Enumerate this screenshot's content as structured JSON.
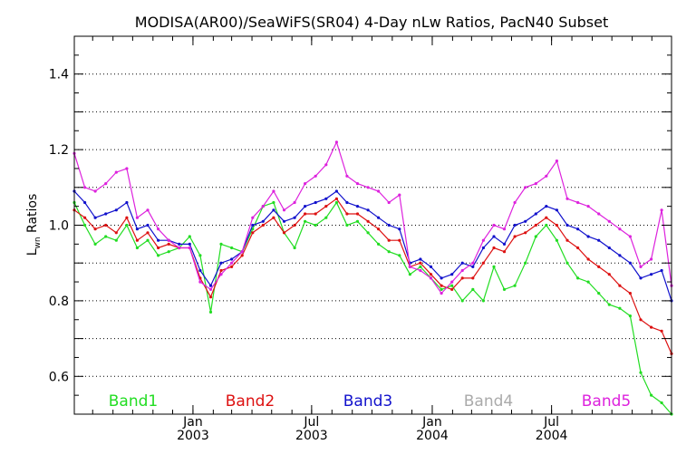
{
  "chart_data": {
    "type": "line",
    "title": "MODISA(AR00)/SeaWiFS(SR04) 4-Day nLw Ratios, PacN40 Subset",
    "ylabel": "L",
    "ylabel_sub": "wn",
    "ylabel_rest": " Ratios",
    "ylim": [
      0.5,
      1.5
    ],
    "xlim": [
      "2002-07-04",
      "2004-12-31"
    ],
    "y_ticks": [
      "0.6",
      "0.8",
      "1.0",
      "1.2",
      "1.4"
    ],
    "y_tick_values": [
      0.6,
      0.8,
      1.0,
      1.2,
      1.4
    ],
    "x_ticks": [
      {
        "date": "2003-01-01",
        "month": "Jan",
        "year": "2003"
      },
      {
        "date": "2003-07-01",
        "month": "Jul",
        "year": "2003"
      },
      {
        "date": "2004-01-01",
        "month": "Jan",
        "year": "2004"
      },
      {
        "date": "2004-07-01",
        "month": "Jul",
        "year": "2004"
      }
    ],
    "grid": "horizontal dotted",
    "legend_placement": "bottom",
    "colors": {
      "Band1": "#22dd22",
      "Band2": "#dd1111",
      "Band3": "#1111cc",
      "Band4": "#aaaaaa",
      "Band5": "#dd22dd"
    },
    "series": [
      {
        "name": "Band1",
        "color": "#22dd22",
        "points": [
          [
            "2002-07-04",
            1.06
          ],
          [
            "2002-07-20",
            1.0
          ],
          [
            "2002-08-05",
            0.95
          ],
          [
            "2002-08-21",
            0.97
          ],
          [
            "2002-09-06",
            0.96
          ],
          [
            "2002-09-22",
            1.0
          ],
          [
            "2002-10-08",
            0.94
          ],
          [
            "2002-10-24",
            0.96
          ],
          [
            "2002-11-09",
            0.92
          ],
          [
            "2002-11-25",
            0.93
          ],
          [
            "2002-12-11",
            0.94
          ],
          [
            "2002-12-27",
            0.97
          ],
          [
            "2003-01-12",
            0.92
          ],
          [
            "2003-01-28",
            0.77
          ],
          [
            "2003-02-13",
            0.95
          ],
          [
            "2003-03-01",
            0.94
          ],
          [
            "2003-03-17",
            0.93
          ],
          [
            "2003-04-02",
            0.99
          ],
          [
            "2003-04-18",
            1.05
          ],
          [
            "2003-05-04",
            1.06
          ],
          [
            "2003-05-20",
            0.98
          ],
          [
            "2003-06-05",
            0.94
          ],
          [
            "2003-06-21",
            1.01
          ],
          [
            "2003-07-07",
            1.0
          ],
          [
            "2003-07-23",
            1.02
          ],
          [
            "2003-08-08",
            1.06
          ],
          [
            "2003-08-24",
            1.0
          ],
          [
            "2003-09-09",
            1.01
          ],
          [
            "2003-09-25",
            0.98
          ],
          [
            "2003-10-11",
            0.95
          ],
          [
            "2003-10-27",
            0.93
          ],
          [
            "2003-11-12",
            0.92
          ],
          [
            "2003-11-28",
            0.87
          ],
          [
            "2003-12-14",
            0.89
          ],
          [
            "2003-12-30",
            0.86
          ],
          [
            "2004-01-15",
            0.83
          ],
          [
            "2004-01-31",
            0.84
          ],
          [
            "2004-02-16",
            0.8
          ],
          [
            "2004-03-03",
            0.83
          ],
          [
            "2004-03-19",
            0.8
          ],
          [
            "2004-04-04",
            0.89
          ],
          [
            "2004-04-20",
            0.83
          ],
          [
            "2004-05-06",
            0.84
          ],
          [
            "2004-05-22",
            0.9
          ],
          [
            "2004-06-07",
            0.97
          ],
          [
            "2004-06-23",
            1.0
          ],
          [
            "2004-07-09",
            0.96
          ],
          [
            "2004-07-25",
            0.9
          ],
          [
            "2004-08-10",
            0.86
          ],
          [
            "2004-08-26",
            0.85
          ],
          [
            "2004-09-11",
            0.82
          ],
          [
            "2004-09-27",
            0.79
          ],
          [
            "2004-10-13",
            0.78
          ],
          [
            "2004-10-29",
            0.76
          ],
          [
            "2004-11-14",
            0.61
          ],
          [
            "2004-11-30",
            0.55
          ],
          [
            "2004-12-16",
            0.53
          ],
          [
            "2004-12-31",
            0.5
          ]
        ]
      },
      {
        "name": "Band2",
        "color": "#dd1111",
        "points": [
          [
            "2002-07-04",
            1.04
          ],
          [
            "2002-07-20",
            1.02
          ],
          [
            "2002-08-05",
            0.99
          ],
          [
            "2002-08-21",
            1.0
          ],
          [
            "2002-09-06",
            0.98
          ],
          [
            "2002-09-22",
            1.02
          ],
          [
            "2002-10-08",
            0.96
          ],
          [
            "2002-10-24",
            0.98
          ],
          [
            "2002-11-09",
            0.94
          ],
          [
            "2002-11-25",
            0.95
          ],
          [
            "2002-12-11",
            0.94
          ],
          [
            "2002-12-27",
            0.94
          ],
          [
            "2003-01-12",
            0.86
          ],
          [
            "2003-01-28",
            0.81
          ],
          [
            "2003-02-13",
            0.88
          ],
          [
            "2003-03-01",
            0.89
          ],
          [
            "2003-03-17",
            0.92
          ],
          [
            "2003-04-02",
            0.98
          ],
          [
            "2003-04-18",
            1.0
          ],
          [
            "2003-05-04",
            1.02
          ],
          [
            "2003-05-20",
            0.98
          ],
          [
            "2003-06-05",
            1.0
          ],
          [
            "2003-06-21",
            1.03
          ],
          [
            "2003-07-07",
            1.03
          ],
          [
            "2003-07-23",
            1.05
          ],
          [
            "2003-08-08",
            1.07
          ],
          [
            "2003-08-24",
            1.03
          ],
          [
            "2003-09-09",
            1.03
          ],
          [
            "2003-09-25",
            1.01
          ],
          [
            "2003-10-11",
            0.99
          ],
          [
            "2003-10-27",
            0.96
          ],
          [
            "2003-11-12",
            0.96
          ],
          [
            "2003-11-28",
            0.89
          ],
          [
            "2003-12-14",
            0.9
          ],
          [
            "2003-12-30",
            0.87
          ],
          [
            "2004-01-15",
            0.84
          ],
          [
            "2004-01-31",
            0.83
          ],
          [
            "2004-02-16",
            0.86
          ],
          [
            "2004-03-03",
            0.86
          ],
          [
            "2004-03-19",
            0.9
          ],
          [
            "2004-04-04",
            0.94
          ],
          [
            "2004-04-20",
            0.93
          ],
          [
            "2004-05-06",
            0.97
          ],
          [
            "2004-05-22",
            0.98
          ],
          [
            "2004-06-07",
            1.0
          ],
          [
            "2004-06-23",
            1.02
          ],
          [
            "2004-07-09",
            1.0
          ],
          [
            "2004-07-25",
            0.96
          ],
          [
            "2004-08-10",
            0.94
          ],
          [
            "2004-08-26",
            0.91
          ],
          [
            "2004-09-11",
            0.89
          ],
          [
            "2004-09-27",
            0.87
          ],
          [
            "2004-10-13",
            0.84
          ],
          [
            "2004-10-29",
            0.82
          ],
          [
            "2004-11-14",
            0.75
          ],
          [
            "2004-11-30",
            0.73
          ],
          [
            "2004-12-16",
            0.72
          ],
          [
            "2004-12-31",
            0.66
          ]
        ]
      },
      {
        "name": "Band3",
        "color": "#1111cc",
        "points": [
          [
            "2002-07-04",
            1.09
          ],
          [
            "2002-07-20",
            1.06
          ],
          [
            "2002-08-05",
            1.02
          ],
          [
            "2002-08-21",
            1.03
          ],
          [
            "2002-09-06",
            1.04
          ],
          [
            "2002-09-22",
            1.06
          ],
          [
            "2002-10-08",
            0.99
          ],
          [
            "2002-10-24",
            1.0
          ],
          [
            "2002-11-09",
            0.96
          ],
          [
            "2002-11-25",
            0.96
          ],
          [
            "2002-12-11",
            0.95
          ],
          [
            "2002-12-27",
            0.95
          ],
          [
            "2003-01-12",
            0.88
          ],
          [
            "2003-01-28",
            0.84
          ],
          [
            "2003-02-13",
            0.9
          ],
          [
            "2003-03-01",
            0.91
          ],
          [
            "2003-03-17",
            0.93
          ],
          [
            "2003-04-02",
            1.0
          ],
          [
            "2003-04-18",
            1.01
          ],
          [
            "2003-05-04",
            1.04
          ],
          [
            "2003-05-20",
            1.01
          ],
          [
            "2003-06-05",
            1.02
          ],
          [
            "2003-06-21",
            1.05
          ],
          [
            "2003-07-07",
            1.06
          ],
          [
            "2003-07-23",
            1.07
          ],
          [
            "2003-08-08",
            1.09
          ],
          [
            "2003-08-24",
            1.06
          ],
          [
            "2003-09-09",
            1.05
          ],
          [
            "2003-09-25",
            1.04
          ],
          [
            "2003-10-11",
            1.02
          ],
          [
            "2003-10-27",
            1.0
          ],
          [
            "2003-11-12",
            0.99
          ],
          [
            "2003-11-28",
            0.9
          ],
          [
            "2003-12-14",
            0.91
          ],
          [
            "2003-12-30",
            0.89
          ],
          [
            "2004-01-15",
            0.86
          ],
          [
            "2004-01-31",
            0.87
          ],
          [
            "2004-02-16",
            0.9
          ],
          [
            "2004-03-03",
            0.89
          ],
          [
            "2004-03-19",
            0.94
          ],
          [
            "2004-04-04",
            0.97
          ],
          [
            "2004-04-20",
            0.95
          ],
          [
            "2004-05-06",
            1.0
          ],
          [
            "2004-05-22",
            1.01
          ],
          [
            "2004-06-07",
            1.03
          ],
          [
            "2004-06-23",
            1.05
          ],
          [
            "2004-07-09",
            1.04
          ],
          [
            "2004-07-25",
            1.0
          ],
          [
            "2004-08-10",
            0.99
          ],
          [
            "2004-08-26",
            0.97
          ],
          [
            "2004-09-11",
            0.96
          ],
          [
            "2004-09-27",
            0.94
          ],
          [
            "2004-10-13",
            0.92
          ],
          [
            "2004-10-29",
            0.9
          ],
          [
            "2004-11-14",
            0.86
          ],
          [
            "2004-11-30",
            0.87
          ],
          [
            "2004-12-16",
            0.88
          ],
          [
            "2004-12-31",
            0.8
          ]
        ]
      },
      {
        "name": "Band5",
        "color": "#dd22dd",
        "points": [
          [
            "2002-07-04",
            1.19
          ],
          [
            "2002-07-20",
            1.1
          ],
          [
            "2002-08-05",
            1.09
          ],
          [
            "2002-08-21",
            1.11
          ],
          [
            "2002-09-06",
            1.14
          ],
          [
            "2002-09-22",
            1.15
          ],
          [
            "2002-10-08",
            1.02
          ],
          [
            "2002-10-24",
            1.04
          ],
          [
            "2002-11-09",
            0.99
          ],
          [
            "2002-11-25",
            0.96
          ],
          [
            "2002-12-11",
            0.94
          ],
          [
            "2002-12-27",
            0.94
          ],
          [
            "2003-01-12",
            0.85
          ],
          [
            "2003-01-28",
            0.83
          ],
          [
            "2003-02-13",
            0.87
          ],
          [
            "2003-03-01",
            0.9
          ],
          [
            "2003-03-17",
            0.93
          ],
          [
            "2003-04-02",
            1.02
          ],
          [
            "2003-04-18",
            1.05
          ],
          [
            "2003-05-04",
            1.09
          ],
          [
            "2003-05-20",
            1.04
          ],
          [
            "2003-06-05",
            1.06
          ],
          [
            "2003-06-21",
            1.11
          ],
          [
            "2003-07-07",
            1.13
          ],
          [
            "2003-07-23",
            1.16
          ],
          [
            "2003-08-08",
            1.22
          ],
          [
            "2003-08-24",
            1.13
          ],
          [
            "2003-09-09",
            1.11
          ],
          [
            "2003-09-25",
            1.1
          ],
          [
            "2003-10-11",
            1.09
          ],
          [
            "2003-10-27",
            1.06
          ],
          [
            "2003-11-12",
            1.08
          ],
          [
            "2003-11-28",
            0.89
          ],
          [
            "2003-12-14",
            0.88
          ],
          [
            "2003-12-30",
            0.86
          ],
          [
            "2004-01-15",
            0.82
          ],
          [
            "2004-01-31",
            0.85
          ],
          [
            "2004-02-16",
            0.88
          ],
          [
            "2004-03-03",
            0.9
          ],
          [
            "2004-03-19",
            0.96
          ],
          [
            "2004-04-04",
            1.0
          ],
          [
            "2004-04-20",
            0.99
          ],
          [
            "2004-05-06",
            1.06
          ],
          [
            "2004-05-22",
            1.1
          ],
          [
            "2004-06-07",
            1.11
          ],
          [
            "2004-06-23",
            1.13
          ],
          [
            "2004-07-09",
            1.17
          ],
          [
            "2004-07-25",
            1.07
          ],
          [
            "2004-08-10",
            1.06
          ],
          [
            "2004-08-26",
            1.05
          ],
          [
            "2004-09-11",
            1.03
          ],
          [
            "2004-09-27",
            1.01
          ],
          [
            "2004-10-13",
            0.99
          ],
          [
            "2004-10-29",
            0.97
          ],
          [
            "2004-11-14",
            0.89
          ],
          [
            "2004-11-30",
            0.91
          ],
          [
            "2004-12-16",
            1.04
          ],
          [
            "2004-12-31",
            0.84
          ]
        ]
      }
    ],
    "legend": [
      {
        "name": "Band1",
        "color": "#22dd22"
      },
      {
        "name": "Band2",
        "color": "#dd1111"
      },
      {
        "name": "Band3",
        "color": "#1111cc"
      },
      {
        "name": "Band4",
        "color": "#aaaaaa"
      },
      {
        "name": "Band5",
        "color": "#dd22dd"
      }
    ]
  }
}
